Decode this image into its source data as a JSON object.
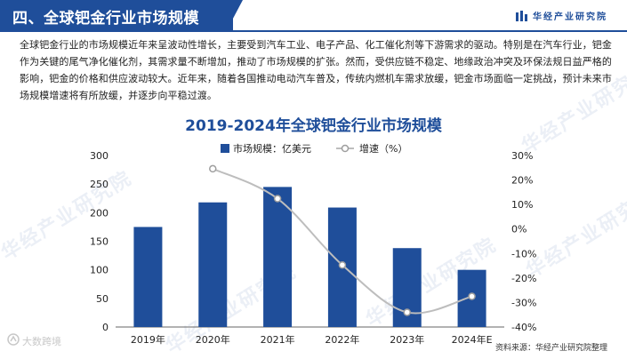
{
  "header": {
    "title": "四、全球钯金行业市场规模",
    "brand": "华经产业研究院"
  },
  "paragraph": "全球钯金行业的市场规模近年来呈波动性增长，主要受到汽车工业、电子产品、化工催化剂等下游需求的驱动。特别是在汽车行业，钯金作为关键的尾气净化催化剂，其需求量不断增加，推动了市场规模的扩张。然而，受供应链不稳定、地缘政治冲突及环保法规日益严格的影响，钯金的价格和供应波动较大。近年来，随着各国推动电动汽车普及，传统内燃机车需求放缓，钯金市场面临一定挑战，预计未来市场规模增速将有所放缓，并逐步向平稳过渡。",
  "watermark": "华经产业研究院",
  "footer": {
    "logo_text": "大数跨境",
    "source": "资料来源：华经产业研究院整理"
  },
  "colors": {
    "primary": "#1f4e9a",
    "bar": "#1f4e9a",
    "line": "#bdbdbd"
  },
  "chart_data": {
    "type": "bar",
    "title": "2019-2024年全球钯金行业市场规模",
    "categories": [
      "2019年",
      "2020年",
      "2021年",
      "2022年",
      "2023年",
      "2024年E"
    ],
    "series": [
      {
        "name": "市场规模：亿美元",
        "type": "bar",
        "axis": "left",
        "values": [
          175,
          218,
          245,
          209,
          138,
          100
        ]
      },
      {
        "name": "增速（%）",
        "type": "line",
        "axis": "right",
        "values": [
          null,
          24.6,
          12.4,
          -14.7,
          -34.0,
          -27.5
        ]
      }
    ],
    "y_left": {
      "min": 0,
      "max": 300,
      "ticks": [
        0,
        50,
        100,
        150,
        200,
        250,
        300
      ]
    },
    "y_right": {
      "min": -40,
      "max": 30,
      "ticks": [
        "-40%",
        "-30%",
        "-20%",
        "-10%",
        "0%",
        "10%",
        "20%",
        "30%"
      ]
    },
    "legend": "top-center",
    "grid": false
  }
}
